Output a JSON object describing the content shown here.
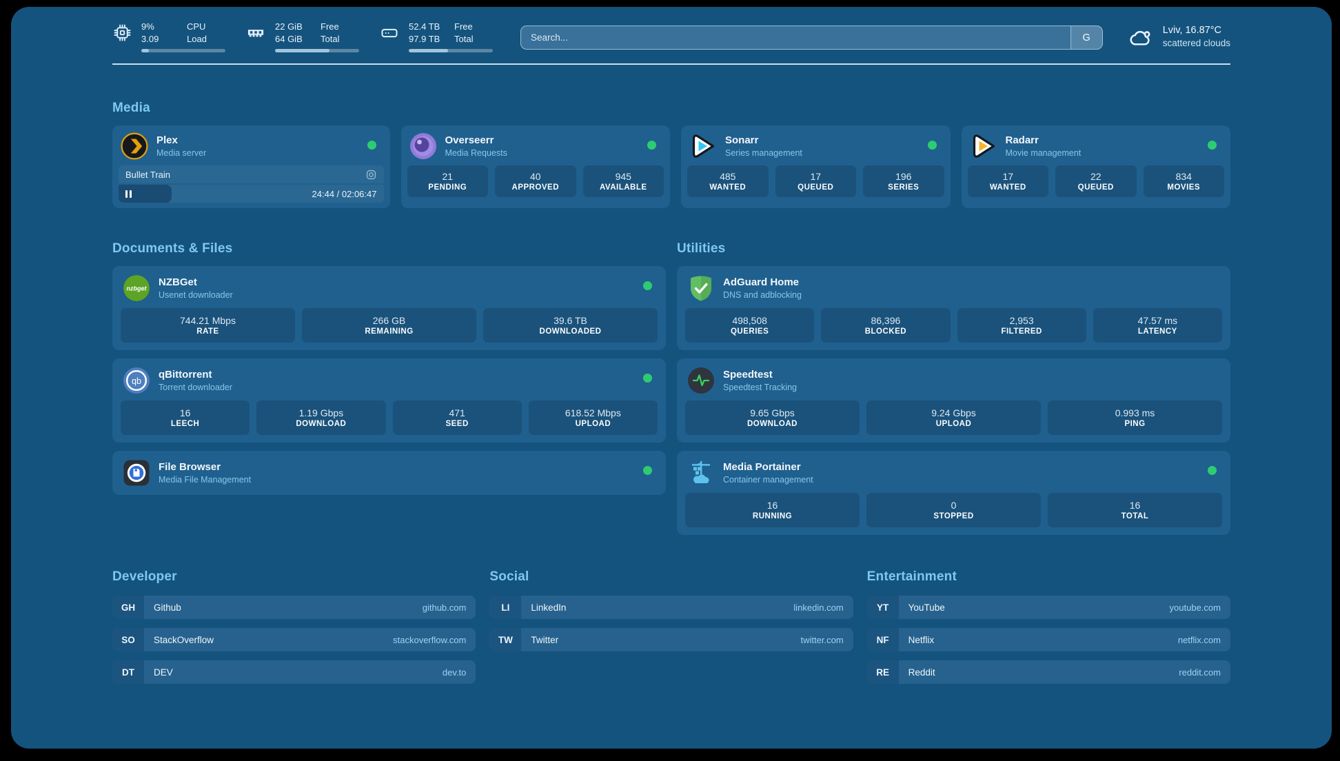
{
  "colors": {
    "background": "#000000",
    "surface": "#14537E",
    "card": "#20608E",
    "accent_text": "#7FC9F0",
    "status_online": "#2ECC71",
    "progress_fill": "#A3C6DD"
  },
  "icons": [
    "cpu-icon",
    "ram-icon",
    "disk-icon",
    "cloud-icon",
    "plex-icon",
    "overseerr-icon",
    "sonarr-icon",
    "radarr-icon",
    "nzbget-icon",
    "qbittorrent-icon",
    "filebrowser-icon",
    "adguard-icon",
    "speedtest-icon",
    "portainer-icon",
    "pause-icon",
    "media-type-icon"
  ],
  "header": {
    "cpu": {
      "value_primary": "9%",
      "value_secondary": "3.09",
      "label_primary": "CPU",
      "label_secondary": "Load",
      "progress_pct": 9
    },
    "memory": {
      "value_primary": "22 GiB",
      "value_secondary": "64 GiB",
      "label_primary": "Free",
      "label_secondary": "Total",
      "progress_pct": 65
    },
    "disk": {
      "value_primary": "52.4 TB",
      "value_secondary": "97.9 TB",
      "label_primary": "Free",
      "label_secondary": "Total",
      "progress_pct": 47
    },
    "search": {
      "placeholder": "Search...",
      "engine_button": "G"
    },
    "weather": {
      "location": "Lviv, 16.87°C",
      "condition": "scattered clouds"
    }
  },
  "sections": {
    "media": "Media",
    "documents": "Documents & Files",
    "utilities": "Utilities",
    "developer": "Developer",
    "social": "Social",
    "entertainment": "Entertainment"
  },
  "apps": {
    "plex": {
      "name": "Plex",
      "subtitle": "Media server",
      "status": "online",
      "now_playing": {
        "title": "Bullet Train",
        "time": "24:44 / 02:06:47",
        "progress_pct": 20
      }
    },
    "overseerr": {
      "name": "Overseerr",
      "subtitle": "Media Requests",
      "status": "online",
      "stats": [
        {
          "value": "21",
          "label": "PENDING"
        },
        {
          "value": "40",
          "label": "APPROVED"
        },
        {
          "value": "945",
          "label": "AVAILABLE"
        }
      ]
    },
    "sonarr": {
      "name": "Sonarr",
      "subtitle": "Series management",
      "status": "online",
      "stats": [
        {
          "value": "485",
          "label": "WANTED"
        },
        {
          "value": "17",
          "label": "QUEUED"
        },
        {
          "value": "196",
          "label": "SERIES"
        }
      ]
    },
    "radarr": {
      "name": "Radarr",
      "subtitle": "Movie management",
      "status": "online",
      "stats": [
        {
          "value": "17",
          "label": "WANTED"
        },
        {
          "value": "22",
          "label": "QUEUED"
        },
        {
          "value": "834",
          "label": "MOVIES"
        }
      ]
    },
    "nzbget": {
      "name": "NZBGet",
      "subtitle": "Usenet downloader",
      "status": "online",
      "stats": [
        {
          "value": "744.21 Mbps",
          "label": "RATE"
        },
        {
          "value": "266 GB",
          "label": "REMAINING"
        },
        {
          "value": "39.6 TB",
          "label": "DOWNLOADED"
        }
      ]
    },
    "qbittorrent": {
      "name": "qBittorrent",
      "subtitle": "Torrent downloader",
      "status": "online",
      "stats": [
        {
          "value": "16",
          "label": "LEECH"
        },
        {
          "value": "1.19 Gbps",
          "label": "DOWNLOAD"
        },
        {
          "value": "471",
          "label": "SEED"
        },
        {
          "value": "618.52 Mbps",
          "label": "UPLOAD"
        }
      ]
    },
    "filebrowser": {
      "name": "File Browser",
      "subtitle": "Media File Management",
      "status": "online"
    },
    "adguard": {
      "name": "AdGuard Home",
      "subtitle": "DNS and adblocking",
      "stats": [
        {
          "value": "498,508",
          "label": "QUERIES"
        },
        {
          "value": "86,396",
          "label": "BLOCKED"
        },
        {
          "value": "2,953",
          "label": "FILTERED"
        },
        {
          "value": "47.57 ms",
          "label": "LATENCY"
        }
      ]
    },
    "speedtest": {
      "name": "Speedtest",
      "subtitle": "Speedtest Tracking",
      "stats": [
        {
          "value": "9.65 Gbps",
          "label": "DOWNLOAD"
        },
        {
          "value": "9.24 Gbps",
          "label": "UPLOAD"
        },
        {
          "value": "0.993 ms",
          "label": "PING"
        }
      ]
    },
    "portainer": {
      "name": "Media Portainer",
      "subtitle": "Container management",
      "status": "online",
      "stats": [
        {
          "value": "16",
          "label": "RUNNING"
        },
        {
          "value": "0",
          "label": "STOPPED"
        },
        {
          "value": "16",
          "label": "TOTAL"
        }
      ]
    }
  },
  "bookmarks": {
    "developer": [
      {
        "abbr": "GH",
        "name": "Github",
        "url": "github.com"
      },
      {
        "abbr": "SO",
        "name": "StackOverflow",
        "url": "stackoverflow.com"
      },
      {
        "abbr": "DT",
        "name": "DEV",
        "url": "dev.to"
      }
    ],
    "social": [
      {
        "abbr": "LI",
        "name": "LinkedIn",
        "url": "linkedin.com"
      },
      {
        "abbr": "TW",
        "name": "Twitter",
        "url": "twitter.com"
      }
    ],
    "entertainment": [
      {
        "abbr": "YT",
        "name": "YouTube",
        "url": "youtube.com"
      },
      {
        "abbr": "NF",
        "name": "Netflix",
        "url": "netflix.com"
      },
      {
        "abbr": "RE",
        "name": "Reddit",
        "url": "reddit.com"
      }
    ]
  }
}
